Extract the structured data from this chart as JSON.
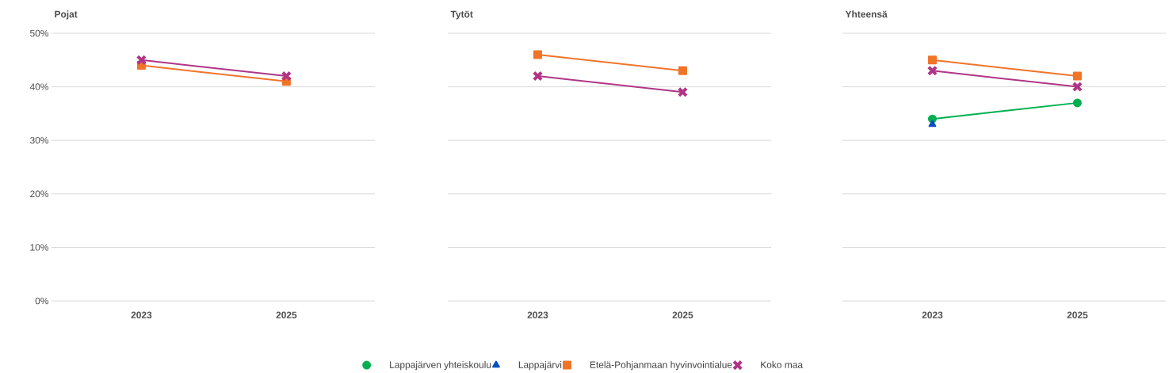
{
  "chart_data": [
    {
      "type": "line",
      "title": "Pojat",
      "categories": [
        "2023",
        "2025"
      ],
      "ylim": [
        0,
        50
      ],
      "yticks": [
        {
          "value": 0,
          "label": "0%"
        },
        {
          "value": 10,
          "label": "10%"
        },
        {
          "value": 20,
          "label": "20%"
        },
        {
          "value": 30,
          "label": "30%"
        },
        {
          "value": 40,
          "label": "40%"
        },
        {
          "value": 50,
          "label": "50%"
        }
      ],
      "grid": "y",
      "series": [
        {
          "color": "#f07428",
          "values": [
            44,
            41
          ],
          "marker": "square"
        },
        {
          "color": "#b03586",
          "values": [
            45,
            42
          ],
          "marker": "cross"
        }
      ]
    },
    {
      "type": "line",
      "title": "Tytöt",
      "categories": [
        "2023",
        "2025"
      ],
      "ylim": [
        0,
        50
      ],
      "yticks": [
        0,
        10,
        20,
        30,
        40,
        50
      ],
      "tick_labels": "x",
      "grid": "y",
      "series": [
        {
          "color": "#f07428",
          "values": [
            46,
            43
          ],
          "marker": "square"
        },
        {
          "color": "#b03586",
          "values": [
            42,
            39
          ],
          "marker": "cross"
        }
      ]
    },
    {
      "type": "line",
      "title": "Yhteensä",
      "categories": [
        "2023",
        "2025"
      ],
      "ylim": [
        0,
        50
      ],
      "yticks": [
        0,
        10,
        20,
        30,
        40,
        50
      ],
      "tick_labels": "x",
      "grid": "y",
      "legend": "bottom",
      "series": [
        {
          "name": "Lappajärven yhteiskoulu",
          "color": "#00b050",
          "values": [
            34,
            37
          ],
          "marker": "circle"
        },
        {
          "name": "Lappajärvi",
          "color": "#0a4fc0",
          "values": [
            33,
            null
          ],
          "marker": "triangle"
        },
        {
          "name": "Etelä-Pohjanmaan hyvinvointialue",
          "color": "#f07428",
          "values": [
            45,
            42
          ],
          "marker": "square"
        },
        {
          "name": "Koko maa",
          "color": "#b03586",
          "values": [
            43,
            40
          ],
          "marker": "cross"
        }
      ]
    }
  ]
}
